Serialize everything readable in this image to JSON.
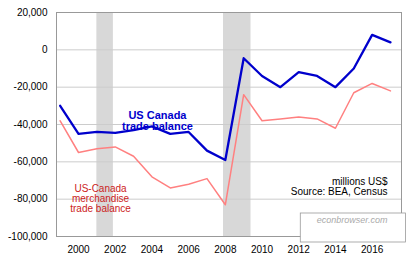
{
  "chart_data": {
    "type": "line",
    "x": [
      1999,
      2000,
      2001,
      2002,
      2003,
      2004,
      2005,
      2006,
      2007,
      2008,
      2009,
      2010,
      2011,
      2012,
      2013,
      2014,
      2015,
      2016,
      2017
    ],
    "series": [
      {
        "color": "#0000cc",
        "values": [
          -30000,
          -45000,
          -44000,
          -44500,
          -43000,
          -41000,
          -45000,
          -44000,
          -54000,
          -59000,
          -4500,
          -14000,
          -20000,
          -12000,
          -14000,
          -20000,
          -10000,
          8000,
          4000
        ]
      },
      {
        "color": "#ff8080",
        "values": [
          -38000,
          -55000,
          -53000,
          -52000,
          -57000,
          -68000,
          -74000,
          -72000,
          -69000,
          -83000,
          -24000,
          -38000,
          -37000,
          -36000,
          -37000,
          -42000,
          -23000,
          -18000,
          -22000
        ]
      }
    ],
    "xlim": [
      1998.8,
      2017.6
    ],
    "xticks": [
      2000,
      2002,
      2004,
      2006,
      2008,
      2010,
      2012,
      2014,
      2016
    ],
    "ylim": [
      -100000,
      20000
    ],
    "yticks": [
      {
        "value": 20000,
        "label": "20,000"
      },
      0,
      {
        "value": -20000,
        "label": "-20,000"
      },
      {
        "value": -40000,
        "label": "-40,000"
      },
      {
        "value": -60000,
        "label": "-60,000"
      },
      {
        "value": -80000,
        "label": "-80,000"
      },
      {
        "value": -100000,
        "label": "-100,000"
      }
    ],
    "grid": "y",
    "recession_bands": [
      [
        2001.0,
        2001.9
      ],
      [
        2007.9,
        2009.4
      ]
    ],
    "recession_color": "#d8d8d8",
    "annotations": [
      {
        "text": "US Canada\ntrade balance",
        "x": 2004.3,
        "y": -38000,
        "color": "#0000cc"
      },
      {
        "text": "US-Canada\nmerchandise\ntrade balance",
        "x": 2001.2,
        "y": -80000,
        "color": "#cc2222"
      },
      {
        "text": "millions US$\nSource: BEA, Census"
      },
      {
        "text": "econbrowser.com",
        "color": "#aaaaaa"
      }
    ]
  }
}
